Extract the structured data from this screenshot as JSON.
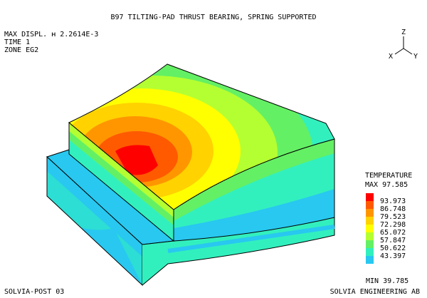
{
  "header": {
    "title": "B97 TILTING-PAD THRUST BEARING, SPRING SUPPORTED",
    "max_displ": "MAX DISPL. ʜ 2.2614E-3",
    "time": "TIME 1",
    "zone": "ZONE EG2"
  },
  "triad": {
    "z": "Z",
    "x": "X",
    "y": "Y"
  },
  "legend": {
    "title": "TEMPERATURE",
    "max": "MAX 97.585",
    "min": "MIN 39.785",
    "levels": [
      {
        "value": "",
        "color": "#ff0000"
      },
      {
        "value": "93.973",
        "color": "#ff5a00"
      },
      {
        "value": "86.748",
        "color": "#ff9600"
      },
      {
        "value": "79.523",
        "color": "#ffd200"
      },
      {
        "value": "72.298",
        "color": "#ffff00"
      },
      {
        "value": "65.072",
        "color": "#b4ff32"
      },
      {
        "value": "57.847",
        "color": "#64f064"
      },
      {
        "value": "50.622",
        "color": "#32f0be"
      },
      {
        "value": "43.397",
        "color": "#28c8f0"
      }
    ]
  },
  "footer": {
    "left": "SOLVIA-POST 03",
    "right": "SOLVIA ENGINEERING AB"
  }
}
